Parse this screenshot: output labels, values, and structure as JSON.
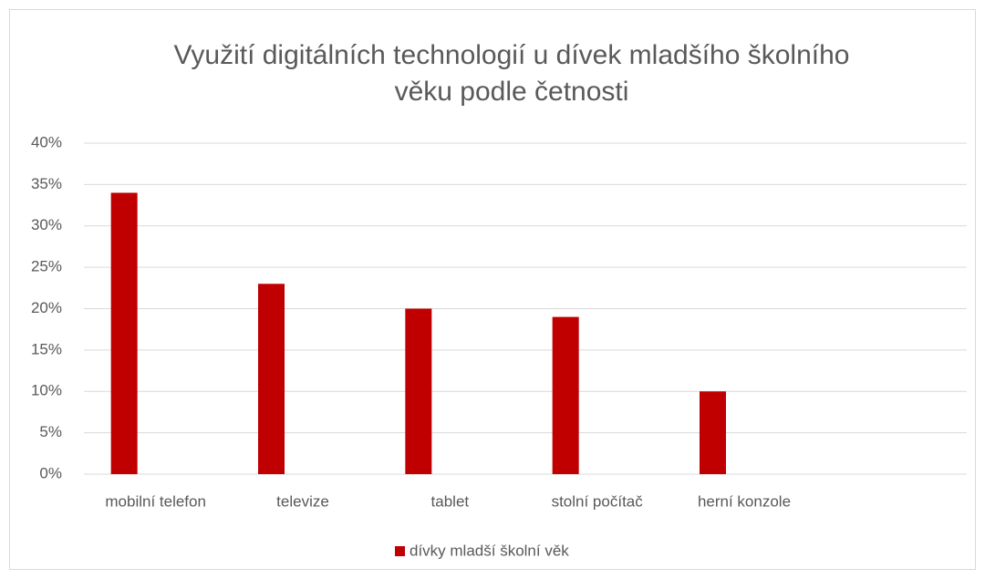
{
  "chart_data": {
    "type": "bar",
    "title": [
      "Využití digitálních technologií u dívek mladšího školního",
      "věku podle četnosti"
    ],
    "categories": [
      "mobilní telefon",
      "televize",
      "tablet",
      "stolní počítač",
      "herní konzole",
      null
    ],
    "series": [
      {
        "name": "dívky mladší školní věk",
        "color": "#c00000",
        "values": [
          34,
          23,
          20,
          19,
          10,
          null
        ]
      }
    ],
    "ylim": [
      0,
      40
    ],
    "yticks": [
      {
        "value": 0,
        "label": "0%"
      },
      {
        "value": 5,
        "label": "5%"
      },
      {
        "value": 10,
        "label": "10%"
      },
      {
        "value": 15,
        "label": "15%"
      },
      {
        "value": 20,
        "label": "20%"
      },
      {
        "value": 25,
        "label": "25%"
      },
      {
        "value": 30,
        "label": "30%"
      },
      {
        "value": 35,
        "label": "35%"
      },
      {
        "value": 40,
        "label": "40%"
      }
    ],
    "grid": true,
    "legend": "bottom"
  }
}
